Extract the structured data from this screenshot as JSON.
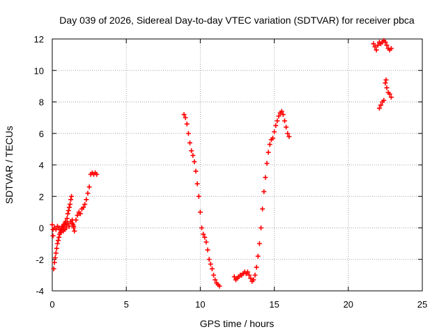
{
  "chart_data": {
    "type": "scatter",
    "title": "Day 039 of 2026, Sidereal Day-to-day VTEC variation (SDTVAR) for receiver pbca",
    "xlabel": "GPS time / hours",
    "ylabel": "SDTVAR / TECUs",
    "xlim": [
      0,
      25
    ],
    "ylim": [
      -4,
      12
    ],
    "xticks": [
      0,
      5,
      10,
      15,
      20,
      25
    ],
    "yticks": [
      -4,
      -2,
      0,
      2,
      4,
      6,
      8,
      10,
      12
    ],
    "xtick_labels": [
      "0",
      "5",
      "10",
      "15",
      "20",
      "25"
    ],
    "ytick_labels": [
      "-4",
      "-2",
      "0",
      "2",
      "4",
      "6",
      "8",
      "10",
      "12"
    ],
    "grid": true,
    "marker": "+",
    "color": "#ff0000",
    "series": [
      {
        "name": "segment-1",
        "x": [
          0.0,
          0.05,
          0.1,
          0.15,
          0.2,
          0.25,
          0.3,
          0.35,
          0.4,
          0.45,
          0.5,
          0.55,
          0.6,
          0.65,
          0.7,
          0.75,
          0.8,
          0.85,
          0.9,
          0.95,
          1.0,
          1.05,
          1.1,
          1.15,
          1.2,
          1.25,
          1.3,
          1.35,
          1.4,
          1.45,
          1.5
        ],
        "y": [
          0.2,
          -0.5,
          -2.6,
          -2.2,
          -1.9,
          -1.6,
          -1.3,
          -1.0,
          -0.8,
          -0.6,
          -0.4,
          -0.3,
          -0.2,
          -0.1,
          0.0,
          0.1,
          0.2,
          0.3,
          0.4,
          0.2,
          0.6,
          0.9,
          1.1,
          1.3,
          1.5,
          1.8,
          2.0,
          0.5,
          0.2,
          0.0,
          -0.2
        ]
      },
      {
        "name": "segment-1b",
        "x": [
          0.05,
          0.15,
          0.25,
          0.35,
          0.45,
          0.55,
          0.65,
          0.75,
          0.85,
          0.95,
          1.05,
          1.15,
          1.25,
          1.35,
          1.45
        ],
        "y": [
          -0.1,
          0.0,
          -0.1,
          0.1,
          0.0,
          -0.1,
          0.1,
          -0.2,
          -0.1,
          0.0,
          0.3,
          0.1,
          0.4,
          0.3,
          0.1
        ]
      },
      {
        "name": "segment-2",
        "x": [
          1.6,
          1.7,
          1.8,
          1.9,
          2.0,
          2.1,
          2.2,
          2.3,
          2.4,
          2.5,
          2.6,
          2.7,
          2.8,
          2.9,
          3.0
        ],
        "y": [
          0.5,
          0.8,
          1.0,
          0.9,
          1.2,
          1.3,
          1.5,
          1.8,
          2.2,
          2.6,
          3.4,
          3.5,
          3.4,
          3.5,
          3.4
        ]
      },
      {
        "name": "segment-3",
        "x": [
          8.9,
          9.0,
          9.1,
          9.2,
          9.3,
          9.4,
          9.5,
          9.6,
          9.7,
          9.8,
          9.9,
          10.0,
          10.1,
          10.2,
          10.3,
          10.4,
          10.5,
          10.6,
          10.7,
          10.8,
          10.9,
          11.0,
          11.1,
          11.2,
          11.3
        ],
        "y": [
          7.2,
          7.0,
          6.6,
          6.0,
          5.4,
          4.9,
          4.6,
          4.2,
          3.6,
          2.8,
          2.0,
          1.0,
          0.0,
          -0.4,
          -0.6,
          -0.9,
          -1.4,
          -2.0,
          -2.3,
          -2.6,
          -3.0,
          -3.3,
          -3.5,
          -3.6,
          -3.7
        ]
      },
      {
        "name": "segment-4",
        "x": [
          12.3,
          12.4,
          12.5,
          12.6,
          12.7,
          12.8,
          12.9,
          13.0,
          13.1,
          13.2,
          13.3,
          13.4,
          13.5,
          13.6,
          13.7,
          13.8,
          13.9,
          14.0,
          14.1,
          14.2,
          14.3,
          14.4,
          14.5,
          14.6,
          14.7,
          14.8,
          14.9,
          15.0,
          15.1,
          15.2,
          15.3,
          15.4,
          15.5,
          15.6,
          15.7,
          15.8,
          15.9,
          16.0
        ],
        "y": [
          -3.1,
          -3.3,
          -3.2,
          -3.1,
          -3.0,
          -3.0,
          -2.9,
          -2.8,
          -2.9,
          -2.8,
          -3.0,
          -3.2,
          -3.4,
          -3.3,
          -3.0,
          -2.5,
          -1.8,
          -1.0,
          0.0,
          1.2,
          2.3,
          3.2,
          4.1,
          4.8,
          5.3,
          5.6,
          5.7,
          6.1,
          6.5,
          6.8,
          7.1,
          7.3,
          7.4,
          7.2,
          6.8,
          6.4,
          6.0,
          5.8
        ]
      },
      {
        "name": "segment-5",
        "x": [
          21.7,
          21.8,
          21.9,
          22.0,
          22.1,
          22.2,
          22.3,
          22.4,
          22.5,
          22.6,
          22.7,
          22.8,
          22.9
        ],
        "y": [
          11.7,
          11.5,
          11.3,
          11.6,
          11.8,
          11.7,
          11.8,
          11.9,
          11.8,
          11.6,
          11.4,
          11.3,
          11.4
        ]
      },
      {
        "name": "segment-6",
        "x": [
          22.1,
          22.2,
          22.3,
          22.4,
          22.5,
          22.55,
          22.6,
          22.7,
          22.8,
          22.9
        ],
        "y": [
          7.6,
          7.8,
          8.0,
          8.1,
          9.2,
          9.4,
          8.9,
          8.6,
          8.5,
          8.3
        ]
      }
    ]
  }
}
